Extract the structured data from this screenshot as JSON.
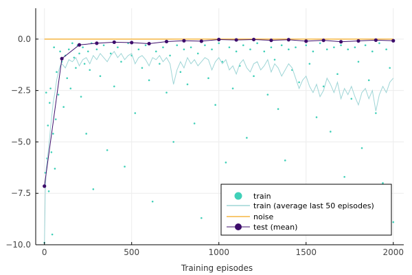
{
  "chart_data": {
    "type": "scatter",
    "title": "",
    "xlabel": "Training episodes",
    "ylabel": "",
    "xlim": [
      -50,
      2060
    ],
    "ylim": [
      -10,
      1.5
    ],
    "x_ticks": [
      0,
      500,
      1000,
      1500,
      2000
    ],
    "x_tick_labels": [
      "0",
      "500",
      "1000",
      "1500",
      "2000"
    ],
    "y_ticks": [
      0,
      -2.5,
      -5,
      -7.5,
      -10
    ],
    "y_tick_labels": [
      "0.0",
      "−2.5",
      "−5.0",
      "−7.5",
      "−10.0"
    ],
    "grid": true,
    "legend_position": "bottom-right",
    "legend": [
      {
        "label": "train",
        "color": "#40d0b8",
        "kind": "marker"
      },
      {
        "label": "train (average last 50 episodes)",
        "color": "#9ed5d6",
        "kind": "line"
      },
      {
        "label": "noise",
        "color": "#f5b541",
        "kind": "line"
      },
      {
        "label": "test (mean)",
        "color": "#3d0d6b",
        "kind": "line-marker"
      }
    ],
    "series": [
      {
        "name": "train",
        "color": "#40d0b8",
        "style": "scatter",
        "x": [
          0,
          5,
          10,
          15,
          20,
          25,
          30,
          35,
          40,
          45,
          50,
          55,
          60,
          65,
          70,
          80,
          90,
          100,
          110,
          120,
          130,
          140,
          150,
          160,
          170,
          180,
          190,
          200,
          210,
          220,
          230,
          240,
          250,
          260,
          270,
          280,
          300,
          320,
          340,
          360,
          380,
          400,
          420,
          440,
          460,
          480,
          500,
          520,
          540,
          560,
          580,
          600,
          620,
          640,
          660,
          680,
          700,
          720,
          740,
          760,
          780,
          800,
          820,
          840,
          860,
          880,
          900,
          920,
          940,
          960,
          980,
          1000,
          1020,
          1040,
          1060,
          1080,
          1100,
          1120,
          1140,
          1160,
          1180,
          1200,
          1220,
          1240,
          1260,
          1280,
          1300,
          1320,
          1340,
          1360,
          1380,
          1400,
          1420,
          1440,
          1460,
          1480,
          1500,
          1520,
          1540,
          1560,
          1580,
          1600,
          1620,
          1640,
          1660,
          1680,
          1700,
          1720,
          1740,
          1760,
          1780,
          1800,
          1820,
          1840,
          1860,
          1880,
          1900,
          1920,
          1940,
          1960,
          1980,
          2000
        ],
        "y": [
          -9.9,
          -6.5,
          -2.6,
          -5.8,
          -4.2,
          -7.4,
          -3.1,
          -2.4,
          -5.5,
          -9.5,
          -4.6,
          -0.4,
          -6.3,
          -3.9,
          -1.6,
          -2.7,
          -0.6,
          -1.1,
          -3.3,
          -0.8,
          -1.9,
          -0.5,
          -2.4,
          -0.2,
          -0.9,
          -1.4,
          -0.3,
          -0.7,
          -2.8,
          -0.4,
          -1.2,
          -4.6,
          -0.6,
          -1.5,
          -0.2,
          -7.3,
          -0.5,
          -1.8,
          -0.3,
          -5.4,
          -0.7,
          -2.3,
          -0.4,
          -1.1,
          -6.2,
          -0.2,
          -0.8,
          -3.6,
          -0.5,
          -1.4,
          -0.3,
          -2.0,
          -7.9,
          -0.6,
          -1.2,
          -0.4,
          -2.6,
          -0.8,
          -5.0,
          -0.3,
          -1.6,
          -0.5,
          -2.2,
          -0.4,
          -4.1,
          -0.7,
          -8.7,
          -0.3,
          -1.9,
          -0.5,
          -3.2,
          -0.2,
          -1.1,
          -6.0,
          -0.4,
          -2.4,
          -0.6,
          -1.3,
          -0.3,
          -4.8,
          -0.5,
          -1.8,
          -0.2,
          -7.1,
          -0.6,
          -2.7,
          -0.4,
          -1.0,
          -3.4,
          -0.3,
          -5.9,
          -0.5,
          -1.5,
          -0.4,
          -2.1,
          -8.2,
          -0.3,
          -1.2,
          -0.6,
          -3.8,
          -0.2,
          -2.3,
          -0.5,
          -4.5,
          -0.4,
          -1.7,
          -0.3,
          -6.7,
          -0.5,
          -2.9,
          -0.4,
          -1.1,
          -5.3,
          -0.3,
          -2.0,
          -0.6,
          -3.6,
          -0.2,
          -7.0,
          -0.5,
          -1.4,
          -8.9
        ]
      },
      {
        "name": "train (average last 50 episodes)",
        "color": "#9ed5d6",
        "style": "line",
        "x": [
          0,
          5,
          10,
          15,
          20,
          25,
          30,
          35,
          40,
          50,
          60,
          70,
          80,
          90,
          100,
          120,
          140,
          160,
          180,
          200,
          220,
          240,
          260,
          280,
          300,
          320,
          340,
          360,
          380,
          400,
          420,
          440,
          460,
          480,
          500,
          520,
          540,
          560,
          580,
          600,
          620,
          640,
          660,
          680,
          700,
          720,
          740,
          760,
          780,
          800,
          820,
          840,
          860,
          880,
          900,
          920,
          940,
          960,
          980,
          1000,
          1020,
          1040,
          1060,
          1080,
          1100,
          1120,
          1140,
          1160,
          1180,
          1200,
          1220,
          1240,
          1260,
          1280,
          1300,
          1320,
          1340,
          1360,
          1380,
          1400,
          1420,
          1440,
          1460,
          1480,
          1500,
          1520,
          1540,
          1560,
          1580,
          1600,
          1620,
          1640,
          1660,
          1680,
          1700,
          1720,
          1740,
          1760,
          1780,
          1800,
          1820,
          1840,
          1860,
          1880,
          1900,
          1920,
          1940,
          1960,
          1980,
          2000
        ],
        "y": [
          -10.0,
          -7.5,
          -6.3,
          -6.0,
          -5.6,
          -5.2,
          -4.8,
          -4.3,
          -3.9,
          -3.1,
          -2.6,
          -2.0,
          -1.6,
          -1.3,
          -1.2,
          -1.4,
          -1.0,
          -1.1,
          -0.9,
          -1.3,
          -1.0,
          -0.9,
          -1.2,
          -0.8,
          -1.0,
          -0.7,
          -0.9,
          -1.1,
          -0.8,
          -0.6,
          -0.9,
          -0.7,
          -1.0,
          -0.8,
          -0.7,
          -1.2,
          -0.9,
          -0.8,
          -1.0,
          -1.3,
          -0.9,
          -1.0,
          -0.8,
          -1.1,
          -0.9,
          -1.2,
          -2.2,
          -1.5,
          -1.1,
          -1.4,
          -0.9,
          -1.2,
          -1.0,
          -1.3,
          -1.1,
          -0.9,
          -1.0,
          -1.5,
          -1.1,
          -0.9,
          -1.2,
          -1.0,
          -1.5,
          -1.3,
          -1.7,
          -1.2,
          -1.0,
          -1.4,
          -1.6,
          -1.2,
          -1.1,
          -1.5,
          -1.3,
          -1.0,
          -1.6,
          -1.2,
          -1.4,
          -1.8,
          -1.5,
          -1.2,
          -1.4,
          -1.9,
          -2.4,
          -2.0,
          -1.8,
          -2.3,
          -2.6,
          -2.2,
          -2.8,
          -2.5,
          -1.9,
          -2.2,
          -2.6,
          -2.1,
          -2.9,
          -2.4,
          -2.7,
          -2.3,
          -2.8,
          -3.2,
          -2.6,
          -2.4,
          -2.9,
          -2.5,
          -3.5,
          -2.7,
          -2.3,
          -2.6,
          -2.1,
          -1.9
        ]
      },
      {
        "name": "noise",
        "color": "#f5b541",
        "style": "line",
        "x": [
          0,
          2000
        ],
        "y": [
          0,
          0
        ]
      },
      {
        "name": "test (mean)",
        "color": "#3d0d6b",
        "style": "line-marker",
        "x": [
          0,
          100,
          200,
          300,
          400,
          500,
          600,
          700,
          800,
          900,
          1000,
          1100,
          1200,
          1300,
          1400,
          1500,
          1600,
          1700,
          1800,
          1900,
          2000
        ],
        "y": [
          -7.15,
          -0.95,
          -0.28,
          -0.2,
          -0.15,
          -0.17,
          -0.22,
          -0.12,
          -0.08,
          -0.1,
          -0.02,
          -0.04,
          -0.02,
          -0.06,
          -0.03,
          -0.1,
          -0.06,
          -0.13,
          -0.09,
          -0.05,
          -0.08
        ]
      }
    ]
  }
}
